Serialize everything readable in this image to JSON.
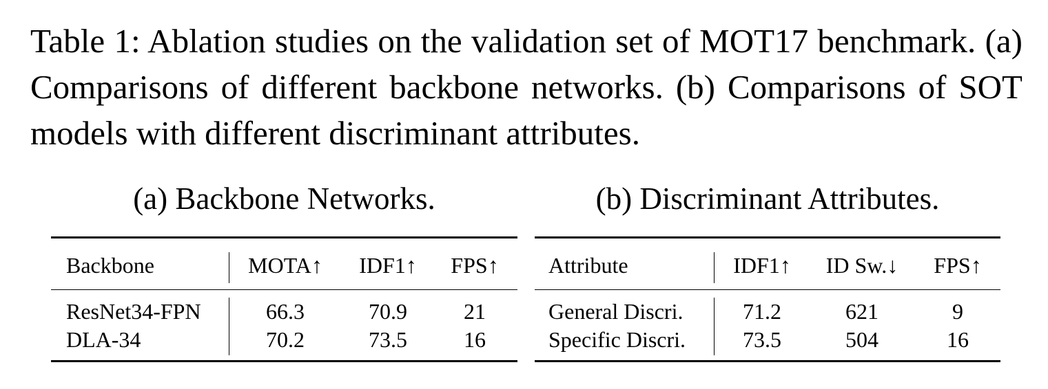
{
  "caption": "Table 1: Ablation studies on the validation set of MOT17 benchmark. (a) Comparisons of different backbone networks. (b) Comparisons of SOT models with different discriminant attributes.",
  "table_a": {
    "title": "(a) Backbone Networks.",
    "headers": [
      "Backbone",
      "MOTA↑",
      "IDF1↑",
      "FPS↑"
    ],
    "rows": [
      [
        "ResNet34-FPN",
        "66.3",
        "70.9",
        "21"
      ],
      [
        "DLA-34",
        "70.2",
        "73.5",
        "16"
      ]
    ]
  },
  "table_b": {
    "title": "(b) Discriminant Attributes.",
    "headers": [
      "Attribute",
      "IDF1↑",
      "ID Sw.↓",
      "FPS↑"
    ],
    "rows": [
      [
        "General Discri.",
        "71.2",
        "621",
        "9"
      ],
      [
        "Specific Discri.",
        "73.5",
        "504",
        "16"
      ]
    ]
  }
}
